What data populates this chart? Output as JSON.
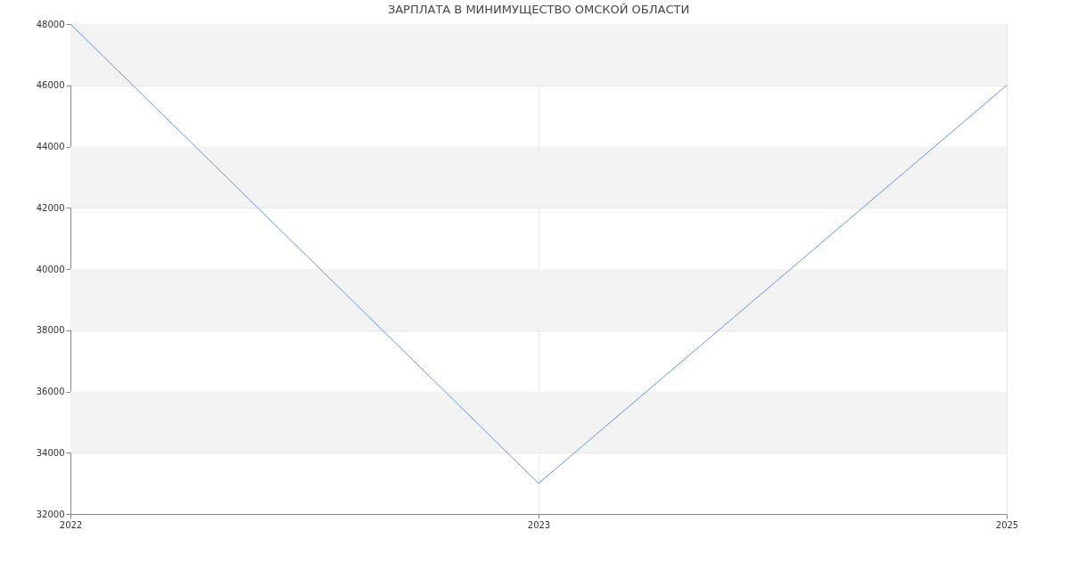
{
  "chart_data": {
    "type": "line",
    "title": "ЗАРПЛАТА В МИНИМУЩЕСТВО ОМСКОЙ ОБЛАСТИ",
    "categories": [
      "2022",
      "2023",
      "2025"
    ],
    "series": [
      {
        "color": "#6495ed",
        "values": [
          48000,
          33000,
          46000
        ]
      }
    ],
    "ylim": [
      32000,
      48000
    ],
    "yticks": [
      32000,
      34000,
      36000,
      38000,
      40000,
      42000,
      44000,
      46000,
      48000
    ],
    "grid": true,
    "marker": "none",
    "line_style": "solid"
  }
}
